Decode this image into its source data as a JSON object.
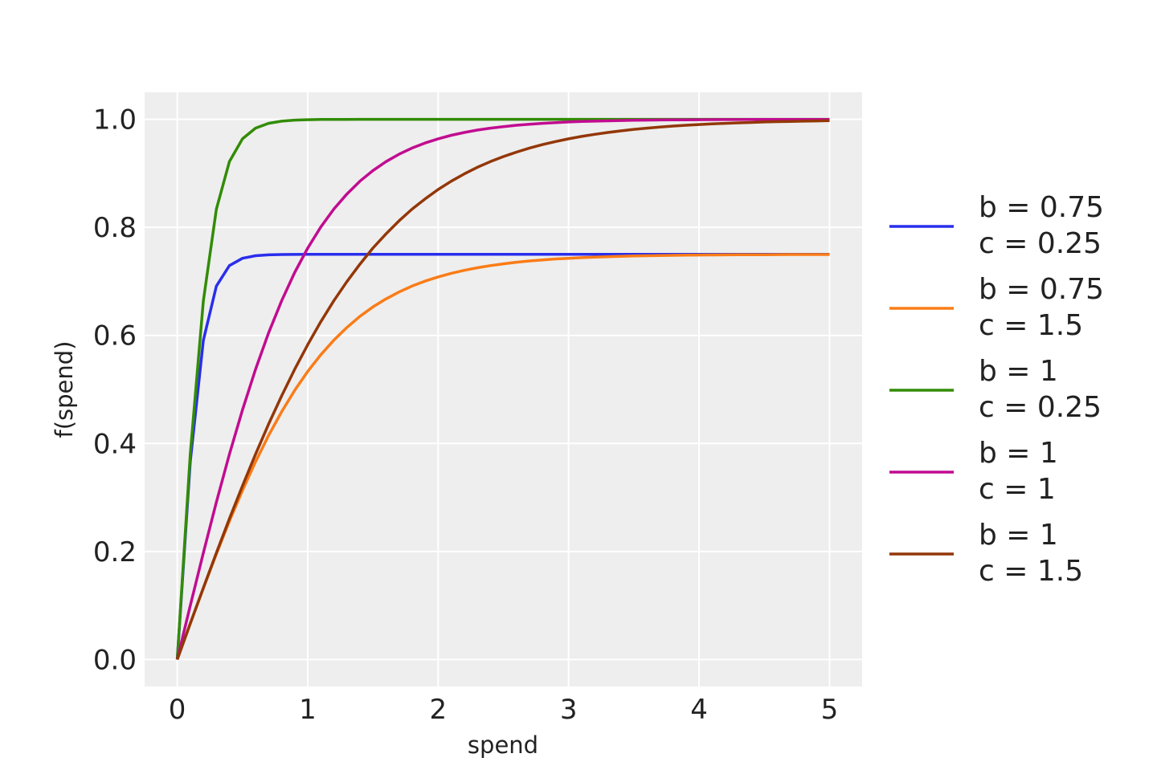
{
  "chart_data": {
    "type": "line",
    "title": "",
    "xlabel": "spend",
    "ylabel": "f(spend)",
    "xlim": [
      -0.25,
      5.25
    ],
    "ylim": [
      -0.05,
      1.05
    ],
    "xticks": [
      "0",
      "1",
      "2",
      "3",
      "4",
      "5"
    ],
    "yticks": [
      "0.0",
      "0.2",
      "0.4",
      "0.6",
      "0.8",
      "1.0"
    ],
    "grid": true,
    "legend_position": "right",
    "background": "#eeeeee",
    "x": [
      0,
      0.1,
      0.2,
      0.3,
      0.4,
      0.5,
      0.6,
      0.7,
      0.8,
      0.9,
      1.0,
      1.1,
      1.2,
      1.3,
      1.4,
      1.5,
      1.6,
      1.7,
      1.8,
      1.9,
      2.0,
      2.1,
      2.2,
      2.3,
      2.4,
      2.5,
      2.6,
      2.7,
      2.8,
      2.9,
      3.0,
      3.1,
      3.2,
      3.3,
      3.4,
      3.5,
      3.6,
      3.7,
      3.8,
      3.9,
      4.0,
      4.1,
      4.2,
      4.3,
      4.4,
      4.5,
      4.6,
      4.7,
      4.8,
      4.9,
      5.0
    ],
    "series": [
      {
        "name": [
          "b = 0.75",
          "c = 0.25"
        ],
        "color": "#2a2eec",
        "values": [
          0,
          0.3659,
          0.591,
          0.6913,
          0.7292,
          0.7428,
          0.7475,
          0.7492,
          0.7497,
          0.7499,
          0.75,
          0.75,
          0.75,
          0.75,
          0.75,
          0.75,
          0.75,
          0.75,
          0.75,
          0.75,
          0.75,
          0.75,
          0.75,
          0.75,
          0.75,
          0.75,
          0.75,
          0.75,
          0.75,
          0.75,
          0.75,
          0.75,
          0.75,
          0.75,
          0.75,
          0.75,
          0.75,
          0.75,
          0.75,
          0.75,
          0.75,
          0.75,
          0.75,
          0.75,
          0.75,
          0.75,
          0.75,
          0.75,
          0.75,
          0.75,
          0.75
        ]
      },
      {
        "name": [
          "b = 0.75",
          "c = 1.5"
        ],
        "color": "#fa7c17",
        "values": [
          0,
          0.0665,
          0.1319,
          0.1954,
          0.256,
          0.313,
          0.3659,
          0.4145,
          0.4586,
          0.498,
          0.5333,
          0.5641,
          0.591,
          0.6146,
          0.6351,
          0.6526,
          0.6675,
          0.6803,
          0.6913,
          0.7005,
          0.7083,
          0.7149,
          0.7205,
          0.7252,
          0.7292,
          0.7325,
          0.7354,
          0.7378,
          0.7398,
          0.7415,
          0.7428,
          0.744,
          0.745,
          0.7457,
          0.7465,
          0.747,
          0.7475,
          0.7479,
          0.7483,
          0.7486,
          0.7488,
          0.749,
          0.7492,
          0.7493,
          0.7494,
          0.7495,
          0.7496,
          0.7497,
          0.7497,
          0.7498,
          0.7498
        ]
      },
      {
        "name": [
          "b = 1",
          "c = 0.25"
        ],
        "color": "#328c06",
        "values": [
          0,
          0.3799,
          0.664,
          0.8337,
          0.9217,
          0.964,
          0.9837,
          0.9926,
          0.9967,
          0.9985,
          0.9993,
          0.9997,
          0.9999,
          0.9999,
          1.0,
          1.0,
          1.0,
          1.0,
          1.0,
          1.0,
          1.0,
          1.0,
          1.0,
          1.0,
          1.0,
          1.0,
          1.0,
          1.0,
          1.0,
          1.0,
          1.0,
          1.0,
          1.0,
          1.0,
          1.0,
          1.0,
          1.0,
          1.0,
          1.0,
          1.0,
          1.0,
          1.0,
          1.0,
          1.0,
          1.0,
          1.0,
          1.0,
          1.0,
          1.0,
          1.0,
          1.0
        ]
      },
      {
        "name": [
          "b = 1",
          "c = 1"
        ],
        "color": "#c10c90",
        "values": [
          0,
          0.0997,
          0.1974,
          0.2913,
          0.3799,
          0.4621,
          0.537,
          0.6044,
          0.664,
          0.7163,
          0.7616,
          0.8005,
          0.8337,
          0.8617,
          0.8854,
          0.9051,
          0.9217,
          0.9354,
          0.9468,
          0.9562,
          0.964,
          0.9705,
          0.9757,
          0.9801,
          0.9837,
          0.9866,
          0.989,
          0.991,
          0.9926,
          0.994,
          0.9951,
          0.996,
          0.9967,
          0.9973,
          0.9978,
          0.9982,
          0.9985,
          0.9988,
          0.999,
          0.9992,
          0.9993,
          0.9995,
          0.9996,
          0.9996,
          0.9997,
          0.9998,
          0.9998,
          0.9998,
          0.9999,
          0.9999,
          0.9999
        ]
      },
      {
        "name": [
          "b = 1",
          "c = 1.5"
        ],
        "color": "#933708",
        "values": [
          0,
          0.0666,
          0.1325,
          0.1974,
          0.2605,
          0.3215,
          0.3799,
          0.4355,
          0.4879,
          0.537,
          0.5828,
          0.6252,
          0.664,
          0.6995,
          0.7317,
          0.7616,
          0.788,
          0.812,
          0.8337,
          0.8527,
          0.8701,
          0.8854,
          0.899,
          0.9111,
          0.9217,
          0.9311,
          0.9393,
          0.9468,
          0.9532,
          0.9589,
          0.964,
          0.9684,
          0.9723,
          0.9757,
          0.9787,
          0.9814,
          0.9837,
          0.9857,
          0.9875,
          0.989,
          0.9904,
          0.9916,
          0.9926,
          0.9935,
          0.9943,
          0.9951,
          0.9957,
          0.9962,
          0.9967,
          0.9971,
          0.9975
        ]
      }
    ]
  }
}
